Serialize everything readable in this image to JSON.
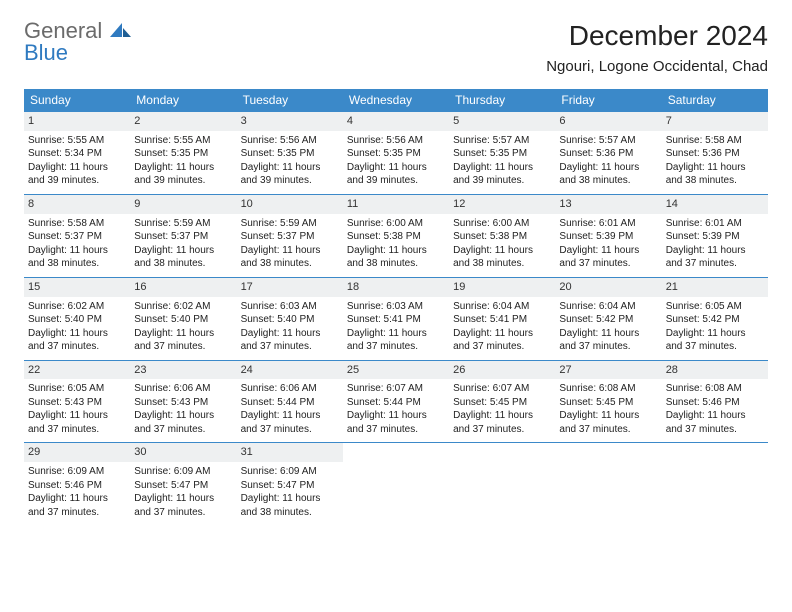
{
  "logo": {
    "word1": "General",
    "word2": "Blue"
  },
  "title": "December 2024",
  "location": "Ngouri, Logone Occidental, Chad",
  "colors": {
    "header_bg": "#3b89c9",
    "header_text": "#ffffff",
    "daynum_bg": "#eef0f1",
    "text": "#222222",
    "logo_gray": "#6b6b6b",
    "logo_blue": "#2f7ac0",
    "border": "#3b89c9"
  },
  "day_labels": [
    "Sunday",
    "Monday",
    "Tuesday",
    "Wednesday",
    "Thursday",
    "Friday",
    "Saturday"
  ],
  "weeks": [
    [
      {
        "n": "1",
        "sr": "5:55 AM",
        "ss": "5:34 PM",
        "dl": "11 hours and 39 minutes."
      },
      {
        "n": "2",
        "sr": "5:55 AM",
        "ss": "5:35 PM",
        "dl": "11 hours and 39 minutes."
      },
      {
        "n": "3",
        "sr": "5:56 AM",
        "ss": "5:35 PM",
        "dl": "11 hours and 39 minutes."
      },
      {
        "n": "4",
        "sr": "5:56 AM",
        "ss": "5:35 PM",
        "dl": "11 hours and 39 minutes."
      },
      {
        "n": "5",
        "sr": "5:57 AM",
        "ss": "5:35 PM",
        "dl": "11 hours and 39 minutes."
      },
      {
        "n": "6",
        "sr": "5:57 AM",
        "ss": "5:36 PM",
        "dl": "11 hours and 38 minutes."
      },
      {
        "n": "7",
        "sr": "5:58 AM",
        "ss": "5:36 PM",
        "dl": "11 hours and 38 minutes."
      }
    ],
    [
      {
        "n": "8",
        "sr": "5:58 AM",
        "ss": "5:37 PM",
        "dl": "11 hours and 38 minutes."
      },
      {
        "n": "9",
        "sr": "5:59 AM",
        "ss": "5:37 PM",
        "dl": "11 hours and 38 minutes."
      },
      {
        "n": "10",
        "sr": "5:59 AM",
        "ss": "5:37 PM",
        "dl": "11 hours and 38 minutes."
      },
      {
        "n": "11",
        "sr": "6:00 AM",
        "ss": "5:38 PM",
        "dl": "11 hours and 38 minutes."
      },
      {
        "n": "12",
        "sr": "6:00 AM",
        "ss": "5:38 PM",
        "dl": "11 hours and 38 minutes."
      },
      {
        "n": "13",
        "sr": "6:01 AM",
        "ss": "5:39 PM",
        "dl": "11 hours and 37 minutes."
      },
      {
        "n": "14",
        "sr": "6:01 AM",
        "ss": "5:39 PM",
        "dl": "11 hours and 37 minutes."
      }
    ],
    [
      {
        "n": "15",
        "sr": "6:02 AM",
        "ss": "5:40 PM",
        "dl": "11 hours and 37 minutes."
      },
      {
        "n": "16",
        "sr": "6:02 AM",
        "ss": "5:40 PM",
        "dl": "11 hours and 37 minutes."
      },
      {
        "n": "17",
        "sr": "6:03 AM",
        "ss": "5:40 PM",
        "dl": "11 hours and 37 minutes."
      },
      {
        "n": "18",
        "sr": "6:03 AM",
        "ss": "5:41 PM",
        "dl": "11 hours and 37 minutes."
      },
      {
        "n": "19",
        "sr": "6:04 AM",
        "ss": "5:41 PM",
        "dl": "11 hours and 37 minutes."
      },
      {
        "n": "20",
        "sr": "6:04 AM",
        "ss": "5:42 PM",
        "dl": "11 hours and 37 minutes."
      },
      {
        "n": "21",
        "sr": "6:05 AM",
        "ss": "5:42 PM",
        "dl": "11 hours and 37 minutes."
      }
    ],
    [
      {
        "n": "22",
        "sr": "6:05 AM",
        "ss": "5:43 PM",
        "dl": "11 hours and 37 minutes."
      },
      {
        "n": "23",
        "sr": "6:06 AM",
        "ss": "5:43 PM",
        "dl": "11 hours and 37 minutes."
      },
      {
        "n": "24",
        "sr": "6:06 AM",
        "ss": "5:44 PM",
        "dl": "11 hours and 37 minutes."
      },
      {
        "n": "25",
        "sr": "6:07 AM",
        "ss": "5:44 PM",
        "dl": "11 hours and 37 minutes."
      },
      {
        "n": "26",
        "sr": "6:07 AM",
        "ss": "5:45 PM",
        "dl": "11 hours and 37 minutes."
      },
      {
        "n": "27",
        "sr": "6:08 AM",
        "ss": "5:45 PM",
        "dl": "11 hours and 37 minutes."
      },
      {
        "n": "28",
        "sr": "6:08 AM",
        "ss": "5:46 PM",
        "dl": "11 hours and 37 minutes."
      }
    ],
    [
      {
        "n": "29",
        "sr": "6:09 AM",
        "ss": "5:46 PM",
        "dl": "11 hours and 37 minutes."
      },
      {
        "n": "30",
        "sr": "6:09 AM",
        "ss": "5:47 PM",
        "dl": "11 hours and 37 minutes."
      },
      {
        "n": "31",
        "sr": "6:09 AM",
        "ss": "5:47 PM",
        "dl": "11 hours and 38 minutes."
      },
      {
        "empty": true
      },
      {
        "empty": true
      },
      {
        "empty": true
      },
      {
        "empty": true
      }
    ]
  ],
  "labels": {
    "sunrise": "Sunrise:",
    "sunset": "Sunset:",
    "daylight": "Daylight:"
  }
}
